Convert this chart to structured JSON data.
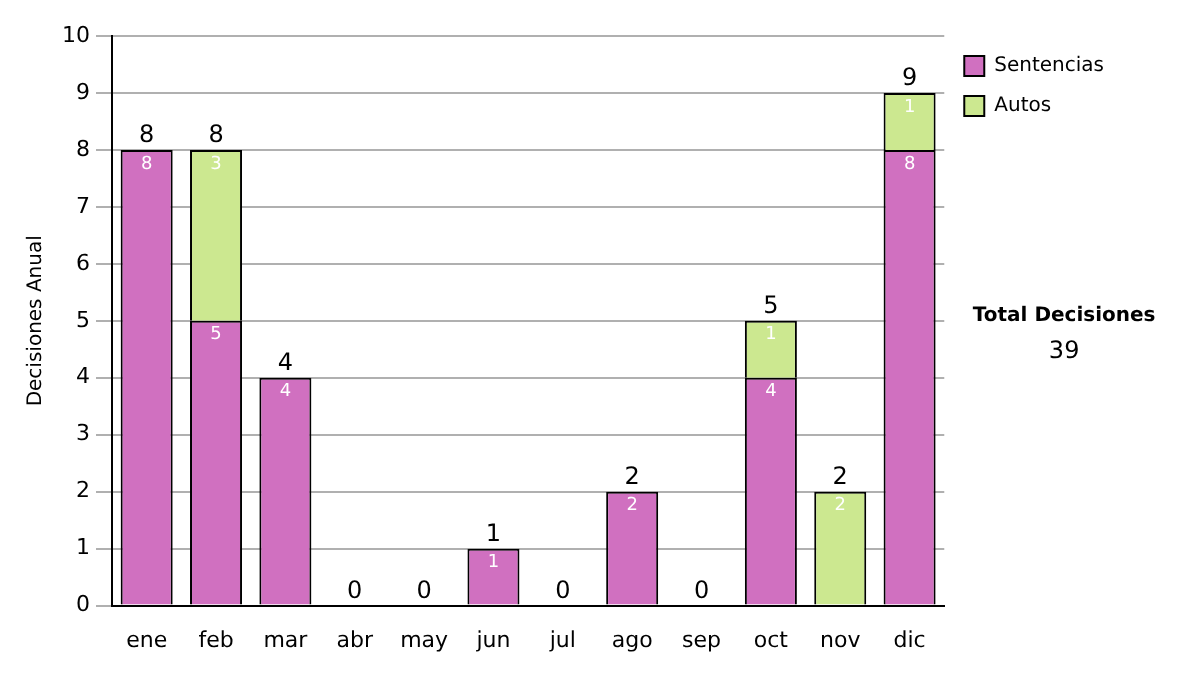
{
  "chart_data": {
    "type": "bar",
    "stacked": true,
    "ylabel": "Decisiones Anual",
    "categories": [
      "ene",
      "feb",
      "mar",
      "abr",
      "may",
      "jun",
      "jul",
      "ago",
      "sep",
      "oct",
      "nov",
      "dic"
    ],
    "series": [
      {
        "name": "Sentencias",
        "color": "#d070c0",
        "values": [
          8,
          5,
          4,
          0,
          0,
          1,
          0,
          2,
          0,
          4,
          0,
          8
        ],
        "value_labels": [
          "8",
          "5",
          "4",
          null,
          null,
          "1",
          null,
          "2",
          null,
          "4",
          null,
          "8"
        ]
      },
      {
        "name": "Autos",
        "color": "#cce890",
        "values": [
          0,
          3,
          0,
          0,
          0,
          0,
          0,
          0,
          0,
          1,
          2,
          1
        ],
        "value_labels": [
          null,
          "3",
          null,
          null,
          null,
          null,
          null,
          null,
          null,
          "1",
          "2",
          "1"
        ]
      }
    ],
    "totals": [
      "8",
      "8",
      "4",
      "0",
      "0",
      "1",
      "0",
      "2",
      "0",
      "5",
      "2",
      "9"
    ],
    "ylim": [
      0,
      10
    ],
    "yticks": [
      0,
      1,
      2,
      3,
      4,
      5,
      6,
      7,
      8,
      9,
      10
    ],
    "grid": "y",
    "legend": "right",
    "annotations": [
      "Total Decisiones",
      "39"
    ]
  }
}
